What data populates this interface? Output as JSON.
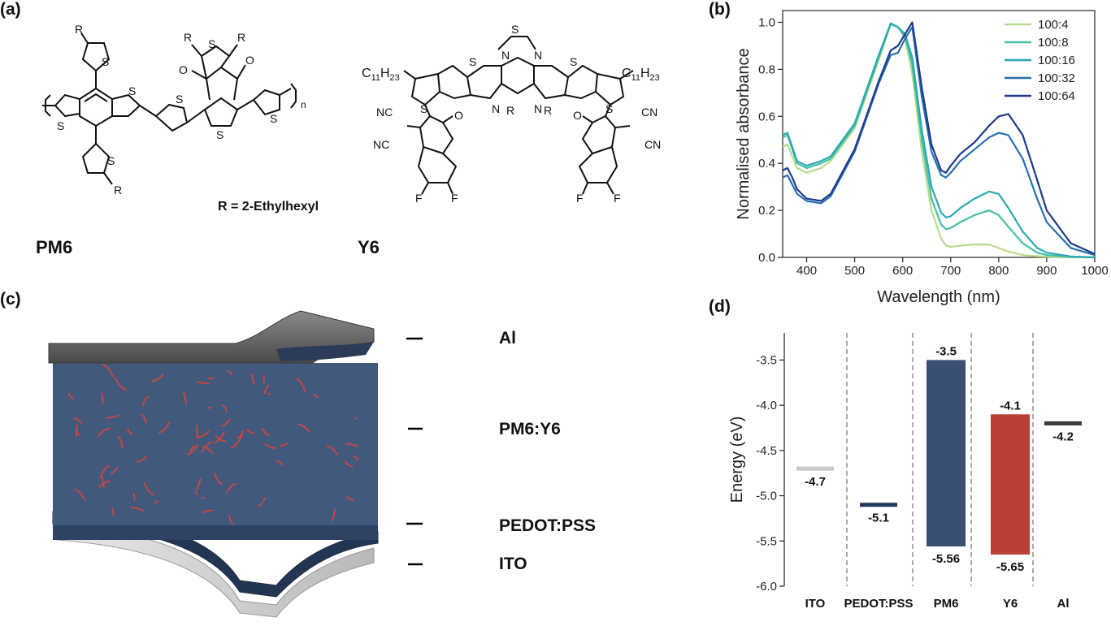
{
  "panels": {
    "a": "(a)",
    "b": "(b)",
    "c": "(c)",
    "d": "(d)"
  },
  "structures": {
    "pm6_name": "PM6",
    "y6_name": "Y6",
    "r_definition": "R = 2-Ethylhexyl",
    "atoms": {
      "s": "S",
      "r": "R",
      "o": "O",
      "n": "N",
      "f": "F",
      "nc": "NC",
      "cn": "CN",
      "subscript_n": "n",
      "alkyl_c": "C",
      "alkyl_c_sub": "11",
      "alkyl_h": "H",
      "alkyl_h_sub": "23"
    }
  },
  "device_stack": {
    "layers": [
      "Al",
      "PM6:Y6",
      "PEDOT:PSS",
      "ITO"
    ],
    "colors": {
      "al": "#5a5a5a",
      "active": "#41597c",
      "fibril": "#d9453b",
      "pedot": "#233550",
      "ito": "#d8d8d8"
    }
  },
  "chart_data": [
    {
      "type": "line",
      "panel": "b",
      "xlabel": "Wavelength (nm)",
      "ylabel": "Normalised absorbance",
      "xlim": [
        350,
        1000
      ],
      "ylim": [
        0,
        1.05
      ],
      "xticks": [
        400,
        500,
        600,
        700,
        800,
        900,
        1000
      ],
      "yticks": [
        0.0,
        0.2,
        0.4,
        0.6,
        0.8,
        1.0
      ],
      "legend_position": "top-right",
      "grid": false,
      "x": [
        350,
        360,
        370,
        380,
        400,
        430,
        450,
        500,
        550,
        575,
        590,
        605,
        620,
        640,
        660,
        680,
        690,
        700,
        720,
        750,
        780,
        800,
        820,
        850,
        880,
        900,
        950,
        1000
      ],
      "series": [
        {
          "name": "100:4",
          "color": "#b5dd8a",
          "values": [
            0.47,
            0.48,
            0.43,
            0.38,
            0.36,
            0.38,
            0.41,
            0.55,
            0.84,
            0.99,
            0.98,
            0.93,
            0.78,
            0.45,
            0.2,
            0.08,
            0.05,
            0.045,
            0.05,
            0.055,
            0.055,
            0.04,
            0.025,
            0.01,
            0.005,
            0.003,
            0.0,
            0.0
          ]
        },
        {
          "name": "100:8",
          "color": "#46bfa5",
          "values": [
            0.51,
            0.52,
            0.46,
            0.4,
            0.38,
            0.4,
            0.42,
            0.56,
            0.85,
            0.995,
            0.98,
            0.94,
            0.82,
            0.5,
            0.25,
            0.14,
            0.12,
            0.125,
            0.15,
            0.18,
            0.2,
            0.18,
            0.13,
            0.06,
            0.02,
            0.01,
            0.002,
            0.0
          ]
        },
        {
          "name": "100:16",
          "color": "#2aa8b5",
          "values": [
            0.52,
            0.53,
            0.47,
            0.41,
            0.39,
            0.41,
            0.43,
            0.57,
            0.86,
            0.995,
            0.98,
            0.95,
            0.85,
            0.54,
            0.3,
            0.19,
            0.17,
            0.175,
            0.21,
            0.25,
            0.28,
            0.27,
            0.21,
            0.11,
            0.04,
            0.02,
            0.004,
            0.0
          ]
        },
        {
          "name": "100:32",
          "color": "#2770b0",
          "values": [
            0.34,
            0.35,
            0.31,
            0.27,
            0.24,
            0.23,
            0.26,
            0.45,
            0.74,
            0.86,
            0.87,
            0.93,
            0.98,
            0.68,
            0.45,
            0.35,
            0.34,
            0.36,
            0.41,
            0.46,
            0.51,
            0.53,
            0.52,
            0.42,
            0.25,
            0.15,
            0.04,
            0.01
          ]
        },
        {
          "name": "100:64",
          "color": "#1e3a8a",
          "values": [
            0.37,
            0.38,
            0.34,
            0.29,
            0.25,
            0.24,
            0.27,
            0.46,
            0.75,
            0.88,
            0.9,
            0.95,
            1.0,
            0.72,
            0.48,
            0.37,
            0.36,
            0.39,
            0.44,
            0.49,
            0.56,
            0.6,
            0.61,
            0.52,
            0.33,
            0.2,
            0.06,
            0.015
          ]
        }
      ]
    },
    {
      "type": "bar",
      "panel": "d",
      "xlabel": "",
      "ylabel": "Energy (eV)",
      "ylim": [
        -6.0,
        -3.2
      ],
      "yticks": [
        -6.0,
        -5.5,
        -5.0,
        -4.5,
        -4.0,
        -3.5
      ],
      "grid": false,
      "categories": [
        "ITO",
        "PEDOT:PSS",
        "PM6",
        "Y6",
        "Al"
      ],
      "levels": [
        {
          "category": "ITO",
          "value": -4.7,
          "label": "-4.7",
          "color": "#c8c8c8"
        },
        {
          "category": "PEDOT:PSS",
          "value": -5.1,
          "label": "-5.1",
          "color": "#203a5c"
        },
        {
          "category": "PM6",
          "top": -3.5,
          "bottom": -5.56,
          "top_label": "-3.5",
          "bottom_label": "-5.56",
          "color": "#394f73"
        },
        {
          "category": "Y6",
          "top": -4.1,
          "bottom": -5.65,
          "top_label": "-4.1",
          "bottom_label": "-5.65",
          "color": "#b94036"
        },
        {
          "category": "Al",
          "value": -4.2,
          "label": "-4.2",
          "color": "#3b3b3b"
        }
      ]
    }
  ]
}
